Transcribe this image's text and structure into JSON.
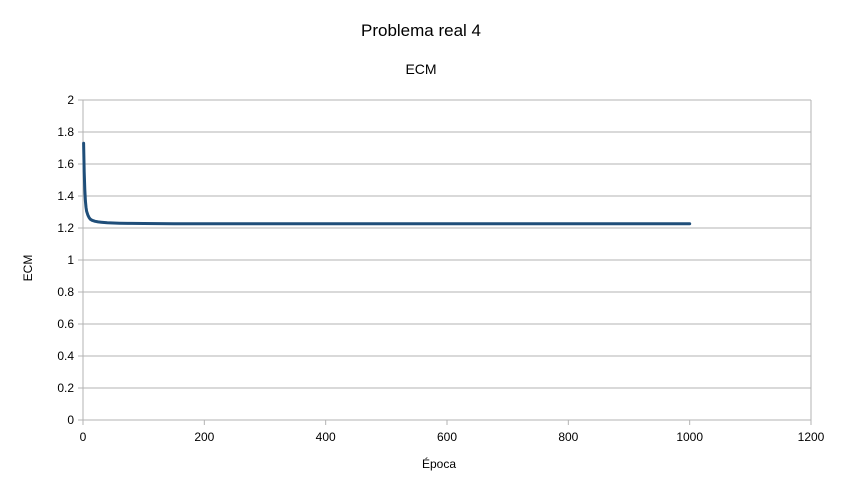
{
  "chart_data": {
    "type": "line",
    "title": "Problema real 4",
    "subtitle": "ECM",
    "xlabel": "Época",
    "ylabel": "ECM",
    "xlim": [
      0,
      1200
    ],
    "ylim": [
      0,
      2
    ],
    "xticks": [
      "0",
      "200",
      "400",
      "600",
      "800",
      "1000",
      "1200"
    ],
    "yticks": [
      "0",
      "0.2",
      "0.4",
      "0.6",
      "0.8",
      "1",
      "1.2",
      "1.4",
      "1.6",
      "1.8",
      "2"
    ],
    "grid": true,
    "legend": "none",
    "series": [
      {
        "color": "#1f4e79",
        "x": [
          1,
          2,
          3,
          4,
          5,
          6,
          8,
          10,
          12,
          15,
          20,
          25,
          30,
          40,
          50,
          60,
          80,
          100,
          150,
          200,
          300,
          400,
          500,
          600,
          700,
          800,
          900,
          1000
        ],
        "y": [
          1.73,
          1.55,
          1.44,
          1.37,
          1.33,
          1.305,
          1.28,
          1.265,
          1.255,
          1.248,
          1.242,
          1.238,
          1.236,
          1.233,
          1.231,
          1.23,
          1.229,
          1.228,
          1.227,
          1.227,
          1.226,
          1.226,
          1.226,
          1.226,
          1.226,
          1.226,
          1.226,
          1.226
        ]
      }
    ]
  }
}
